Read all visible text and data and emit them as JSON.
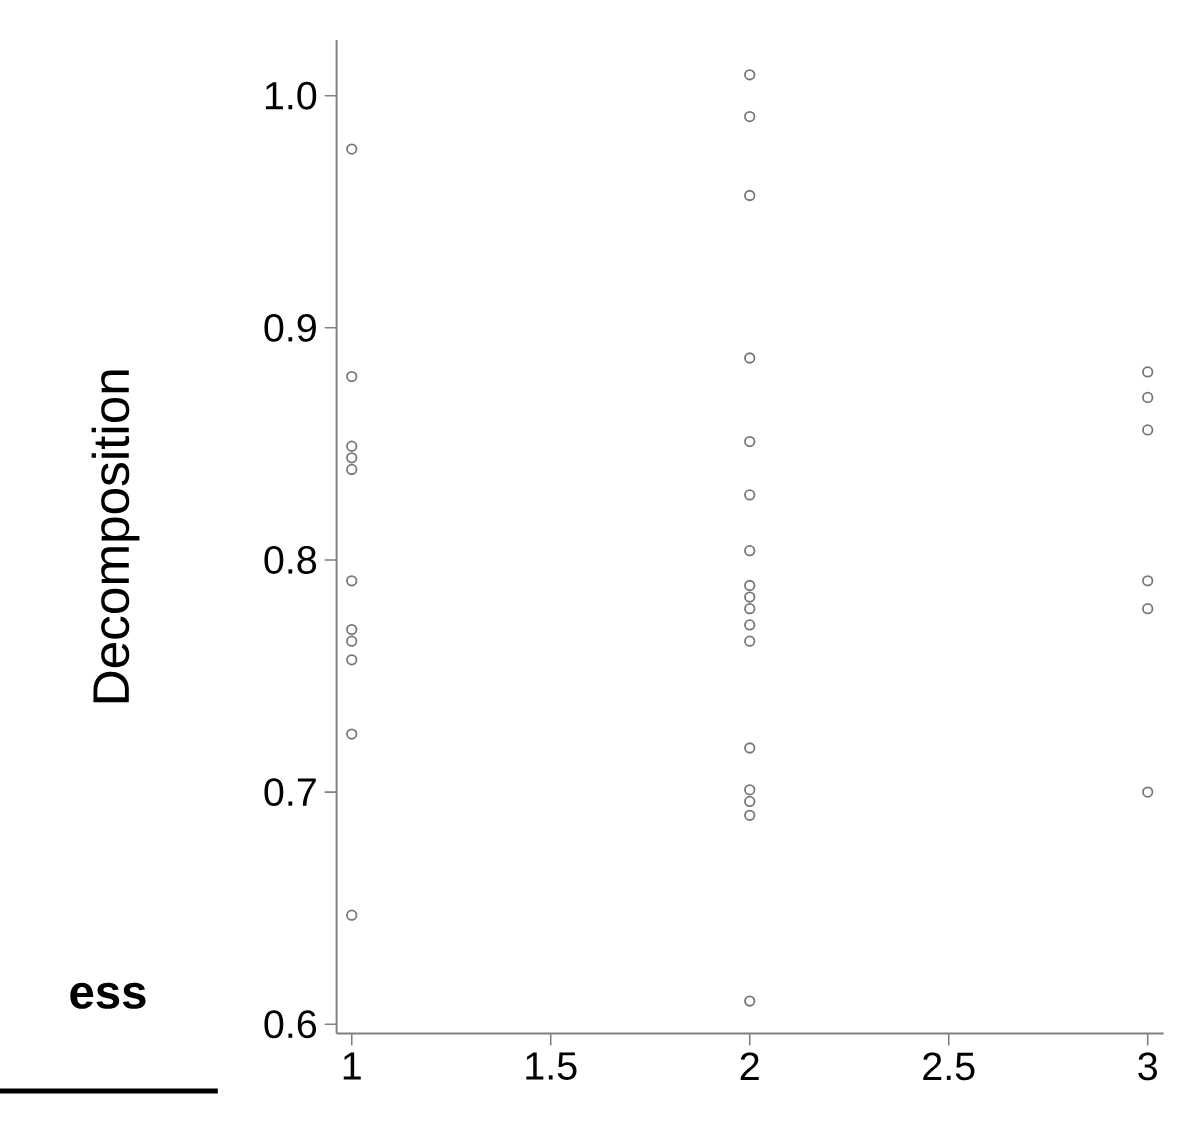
{
  "chart_data": {
    "type": "scatter",
    "ylabel": "Decomposition",
    "annotations": [
      "ess"
    ],
    "x": [
      1,
      1,
      1,
      1,
      1,
      1,
      1,
      1,
      1,
      1,
      1,
      2,
      2,
      2,
      2,
      2,
      2,
      2,
      2,
      2,
      2,
      2,
      2,
      2,
      2,
      2,
      2,
      2,
      3,
      3,
      3,
      3,
      3,
      3
    ],
    "values": [
      0.977,
      0.879,
      0.849,
      0.844,
      0.839,
      0.791,
      0.77,
      0.765,
      0.757,
      0.725,
      0.647,
      1.009,
      0.991,
      0.957,
      0.887,
      0.851,
      0.828,
      0.804,
      0.789,
      0.784,
      0.779,
      0.772,
      0.765,
      0.719,
      0.701,
      0.696,
      0.69,
      0.61,
      0.881,
      0.87,
      0.856,
      0.791,
      0.779,
      0.7
    ],
    "color": "#777777",
    "marker": "circle",
    "xlim": [
      0.962,
      3.04
    ],
    "ylim": [
      0.596,
      1.024
    ],
    "xticks": [
      1,
      1.5,
      2,
      2.5,
      3
    ],
    "yticks": [
      {
        "value": 0.6,
        "label": "0.6"
      },
      {
        "value": 0.7,
        "label": "0.7"
      },
      {
        "value": 0.8,
        "label": "0.8"
      },
      {
        "value": 0.9,
        "label": "0.9"
      },
      {
        "value": 1.0,
        "label": "1.0"
      }
    ]
  }
}
